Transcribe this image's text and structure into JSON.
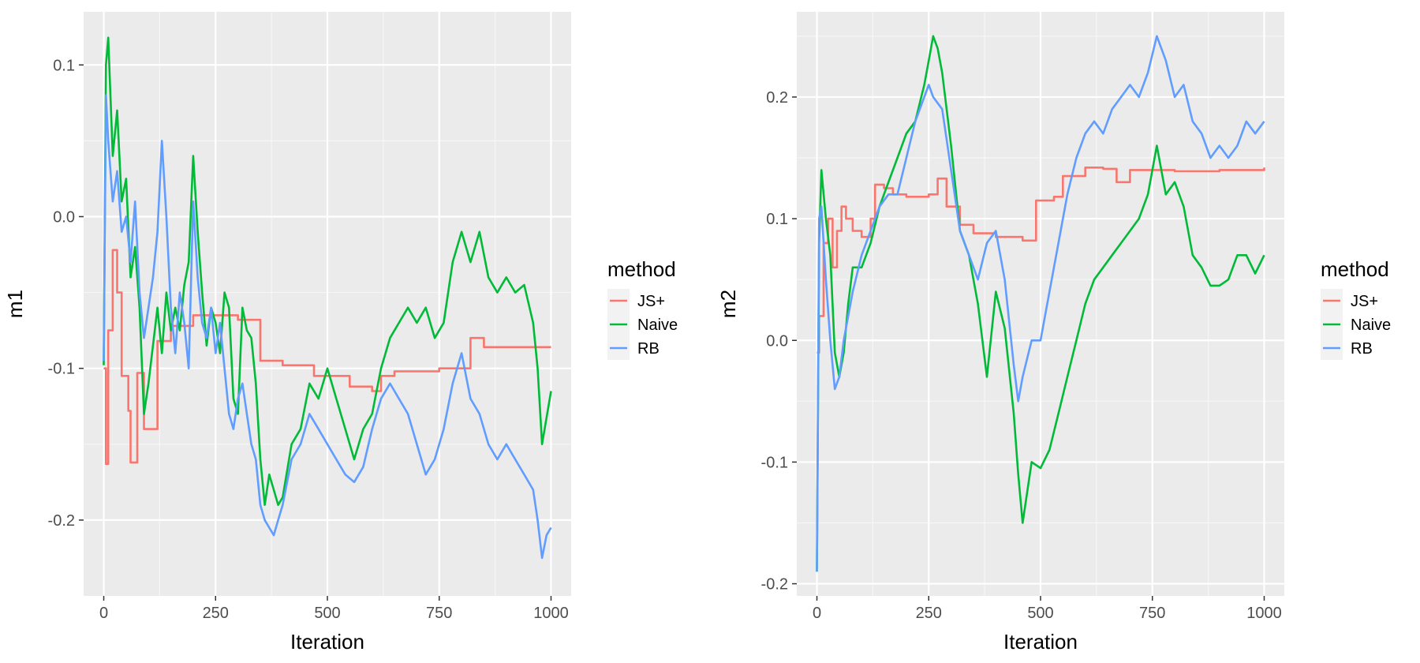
{
  "chart_data": [
    {
      "type": "line",
      "panel": "left",
      "title": "",
      "xlabel": "Iteration",
      "ylabel": "m1",
      "xlim": [
        -45,
        1045
      ],
      "ylim": [
        -0.25,
        0.135
      ],
      "x_ticks": [
        0,
        250,
        500,
        750,
        1000
      ],
      "x_tick_labels": [
        "0",
        "250",
        "500",
        "750",
        "1000"
      ],
      "y_ticks": [
        -0.2,
        -0.1,
        0.0,
        0.1
      ],
      "y_tick_labels": [
        "-0.2",
        "-0.1",
        "0.0",
        "0.1"
      ],
      "grid": true,
      "legend": {
        "title": "method",
        "position": "right"
      },
      "series": [
        {
          "name": "JS+",
          "color": "#F8766D",
          "step": true,
          "x": [
            0,
            5,
            10,
            20,
            30,
            40,
            55,
            60,
            75,
            90,
            120,
            150,
            200,
            300,
            350,
            400,
            470,
            550,
            600,
            620,
            650,
            750,
            820,
            850,
            1000
          ],
          "y": [
            -0.1,
            -0.163,
            -0.075,
            -0.022,
            -0.05,
            -0.105,
            -0.128,
            -0.162,
            -0.103,
            -0.14,
            -0.082,
            -0.072,
            -0.065,
            -0.068,
            -0.095,
            -0.098,
            -0.105,
            -0.112,
            -0.115,
            -0.105,
            -0.102,
            -0.1,
            -0.08,
            -0.086,
            -0.086
          ]
        },
        {
          "name": "Naive",
          "color": "#00BA38",
          "x": [
            0,
            5,
            10,
            20,
            30,
            40,
            50,
            60,
            70,
            80,
            90,
            100,
            110,
            120,
            130,
            140,
            150,
            160,
            170,
            180,
            190,
            200,
            210,
            220,
            230,
            240,
            250,
            260,
            270,
            280,
            290,
            300,
            310,
            320,
            330,
            340,
            350,
            360,
            370,
            380,
            390,
            400,
            420,
            440,
            460,
            480,
            500,
            520,
            540,
            560,
            580,
            600,
            620,
            640,
            660,
            680,
            700,
            720,
            740,
            760,
            780,
            800,
            820,
            840,
            860,
            880,
            900,
            920,
            940,
            960,
            970,
            980,
            1000
          ],
          "y": [
            -0.098,
            0.1,
            0.118,
            0.04,
            0.07,
            0.01,
            0.025,
            -0.04,
            -0.02,
            -0.06,
            -0.13,
            -0.11,
            -0.085,
            -0.06,
            -0.09,
            -0.05,
            -0.075,
            -0.06,
            -0.075,
            -0.045,
            -0.03,
            0.04,
            -0.01,
            -0.05,
            -0.085,
            -0.06,
            -0.07,
            -0.09,
            -0.05,
            -0.06,
            -0.12,
            -0.13,
            -0.06,
            -0.075,
            -0.08,
            -0.11,
            -0.16,
            -0.19,
            -0.17,
            -0.18,
            -0.19,
            -0.185,
            -0.15,
            -0.14,
            -0.11,
            -0.12,
            -0.1,
            -0.12,
            -0.14,
            -0.16,
            -0.14,
            -0.13,
            -0.1,
            -0.08,
            -0.07,
            -0.06,
            -0.07,
            -0.06,
            -0.08,
            -0.07,
            -0.03,
            -0.01,
            -0.03,
            -0.01,
            -0.04,
            -0.05,
            -0.04,
            -0.05,
            -0.045,
            -0.07,
            -0.1,
            -0.15,
            -0.115
          ]
        },
        {
          "name": "RB",
          "color": "#619CFF",
          "x": [
            0,
            5,
            10,
            20,
            30,
            40,
            50,
            60,
            70,
            80,
            90,
            100,
            110,
            120,
            130,
            140,
            150,
            160,
            170,
            180,
            190,
            200,
            210,
            220,
            230,
            240,
            250,
            260,
            270,
            280,
            290,
            300,
            310,
            320,
            330,
            340,
            350,
            360,
            370,
            380,
            390,
            400,
            420,
            440,
            460,
            480,
            500,
            520,
            540,
            560,
            580,
            600,
            620,
            640,
            660,
            680,
            700,
            720,
            740,
            760,
            780,
            800,
            820,
            840,
            860,
            880,
            900,
            920,
            940,
            960,
            970,
            980,
            990,
            1000
          ],
          "y": [
            -0.095,
            0.08,
            0.05,
            0.01,
            0.03,
            -0.01,
            0.0,
            -0.03,
            0.01,
            -0.05,
            -0.08,
            -0.06,
            -0.04,
            -0.01,
            0.05,
            0.0,
            -0.06,
            -0.09,
            -0.05,
            -0.07,
            -0.1,
            0.01,
            -0.04,
            -0.07,
            -0.08,
            -0.06,
            -0.09,
            -0.07,
            -0.1,
            -0.13,
            -0.14,
            -0.12,
            -0.11,
            -0.13,
            -0.15,
            -0.16,
            -0.19,
            -0.2,
            -0.205,
            -0.21,
            -0.2,
            -0.19,
            -0.16,
            -0.15,
            -0.13,
            -0.14,
            -0.15,
            -0.16,
            -0.17,
            -0.175,
            -0.165,
            -0.14,
            -0.12,
            -0.11,
            -0.12,
            -0.13,
            -0.15,
            -0.17,
            -0.16,
            -0.14,
            -0.11,
            -0.09,
            -0.12,
            -0.13,
            -0.15,
            -0.16,
            -0.15,
            -0.16,
            -0.17,
            -0.18,
            -0.2,
            -0.225,
            -0.21,
            -0.205
          ]
        }
      ]
    },
    {
      "type": "line",
      "panel": "right",
      "title": "",
      "xlabel": "Iteration",
      "ylabel": "m2",
      "xlim": [
        -45,
        1045
      ],
      "ylim": [
        -0.21,
        0.27
      ],
      "x_ticks": [
        0,
        250,
        500,
        750,
        1000
      ],
      "x_tick_labels": [
        "0",
        "250",
        "500",
        "750",
        "1000"
      ],
      "y_ticks": [
        -0.2,
        -0.1,
        0.0,
        0.1,
        0.2
      ],
      "y_tick_labels": [
        "-0.2",
        "-0.1",
        "0.0",
        "0.1",
        "0.2"
      ],
      "grid": true,
      "legend": {
        "title": "method",
        "position": "right"
      },
      "series": [
        {
          "name": "JS+",
          "color": "#F8766D",
          "step": true,
          "x": [
            0,
            5,
            15,
            25,
            35,
            45,
            55,
            65,
            80,
            100,
            120,
            130,
            150,
            170,
            200,
            250,
            270,
            290,
            320,
            350,
            400,
            460,
            490,
            530,
            550,
            600,
            640,
            670,
            700,
            800,
            900,
            1000
          ],
          "y": [
            -0.01,
            0.02,
            0.08,
            0.1,
            0.06,
            0.09,
            0.11,
            0.1,
            0.09,
            0.085,
            0.1,
            0.128,
            0.125,
            0.12,
            0.118,
            0.12,
            0.133,
            0.11,
            0.095,
            0.088,
            0.085,
            0.082,
            0.115,
            0.118,
            0.135,
            0.142,
            0.141,
            0.13,
            0.14,
            0.139,
            0.14,
            0.142
          ]
        },
        {
          "name": "Naive",
          "color": "#00BA38",
          "x": [
            0,
            5,
            10,
            20,
            30,
            40,
            50,
            60,
            70,
            80,
            100,
            120,
            140,
            160,
            180,
            200,
            220,
            240,
            250,
            260,
            270,
            280,
            300,
            320,
            340,
            360,
            380,
            400,
            420,
            440,
            450,
            460,
            480,
            500,
            520,
            540,
            560,
            580,
            600,
            620,
            640,
            660,
            680,
            700,
            720,
            740,
            760,
            780,
            800,
            820,
            840,
            860,
            880,
            900,
            920,
            940,
            960,
            980,
            1000
          ],
          "y": [
            -0.19,
            0.08,
            0.14,
            0.1,
            0.07,
            -0.01,
            -0.03,
            -0.01,
            0.03,
            0.06,
            0.06,
            0.08,
            0.11,
            0.13,
            0.15,
            0.17,
            0.18,
            0.21,
            0.23,
            0.25,
            0.24,
            0.22,
            0.16,
            0.09,
            0.07,
            0.03,
            -0.03,
            0.04,
            0.01,
            -0.06,
            -0.11,
            -0.15,
            -0.1,
            -0.105,
            -0.09,
            -0.06,
            -0.03,
            0.0,
            0.03,
            0.05,
            0.06,
            0.07,
            0.08,
            0.09,
            0.1,
            0.12,
            0.16,
            0.12,
            0.13,
            0.11,
            0.07,
            0.06,
            0.045,
            0.045,
            0.05,
            0.07,
            0.07,
            0.055,
            0.07
          ]
        },
        {
          "name": "RB",
          "color": "#619CFF",
          "x": [
            0,
            5,
            10,
            20,
            30,
            40,
            50,
            60,
            70,
            80,
            100,
            120,
            140,
            160,
            180,
            200,
            220,
            240,
            250,
            260,
            280,
            300,
            320,
            340,
            360,
            380,
            400,
            420,
            440,
            450,
            460,
            480,
            500,
            520,
            540,
            560,
            580,
            600,
            620,
            640,
            660,
            680,
            700,
            720,
            740,
            760,
            780,
            800,
            820,
            840,
            860,
            880,
            900,
            920,
            940,
            960,
            980,
            1000
          ],
          "y": [
            -0.19,
            0.1,
            0.11,
            0.05,
            0.0,
            -0.04,
            -0.03,
            0.0,
            0.02,
            0.04,
            0.07,
            0.09,
            0.11,
            0.12,
            0.12,
            0.15,
            0.18,
            0.2,
            0.21,
            0.2,
            0.19,
            0.14,
            0.09,
            0.07,
            0.05,
            0.08,
            0.09,
            0.05,
            -0.02,
            -0.05,
            -0.03,
            0.0,
            0.0,
            0.04,
            0.08,
            0.12,
            0.15,
            0.17,
            0.18,
            0.17,
            0.19,
            0.2,
            0.21,
            0.2,
            0.22,
            0.25,
            0.23,
            0.2,
            0.21,
            0.18,
            0.17,
            0.15,
            0.16,
            0.15,
            0.16,
            0.18,
            0.17,
            0.18
          ]
        }
      ]
    }
  ]
}
